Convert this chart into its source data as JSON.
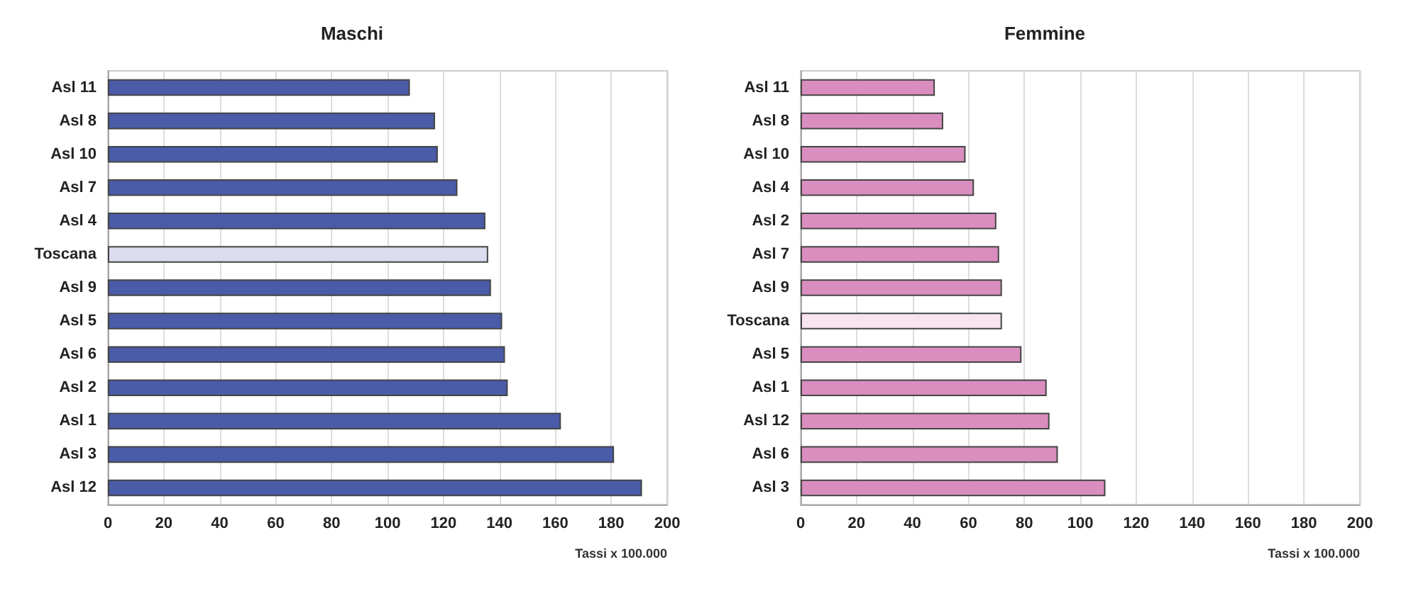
{
  "chart_data": [
    {
      "type": "bar",
      "orientation": "horizontal",
      "title": "Maschi",
      "xlabel": "Tassi x 100.000",
      "categories": [
        "Asl 11",
        "Asl 8",
        "Asl 10",
        "Asl 7",
        "Asl 4",
        "Toscana",
        "Asl 9",
        "Asl 5",
        "Asl 6",
        "Asl 2",
        "Asl 1",
        "Asl 3",
        "Asl 12"
      ],
      "values": [
        108,
        117,
        118,
        125,
        135,
        136,
        137,
        141,
        142,
        143,
        162,
        181,
        191
      ],
      "colors": [
        "#4a5ba8",
        "#4a5ba8",
        "#4a5ba8",
        "#4a5ba8",
        "#4a5ba8",
        "#dcdcf0",
        "#4a5ba8",
        "#4a5ba8",
        "#4a5ba8",
        "#4a5ba8",
        "#4a5ba8",
        "#4a5ba8",
        "#4a5ba8"
      ],
      "xlim": [
        0,
        200
      ],
      "xticks": [
        0,
        20,
        40,
        60,
        80,
        100,
        120,
        140,
        160,
        180,
        200
      ],
      "grid": "x"
    },
    {
      "type": "bar",
      "orientation": "horizontal",
      "title": "Femmine",
      "xlabel": "Tassi x 100.000",
      "categories": [
        "Asl 11",
        "Asl 8",
        "Asl 10",
        "Asl 4",
        "Asl 2",
        "Asl 7",
        "Asl 9",
        "Toscana",
        "Asl 5",
        "Asl 1",
        "Asl 12",
        "Asl 6",
        "Asl 3"
      ],
      "values": [
        48,
        51,
        59,
        62,
        70,
        71,
        72,
        72,
        79,
        88,
        89,
        92,
        109
      ],
      "colors": [
        "#d98ebf",
        "#d98ebf",
        "#d98ebf",
        "#d98ebf",
        "#d98ebf",
        "#d98ebf",
        "#d98ebf",
        "#f7e4ef",
        "#d98ebf",
        "#d98ebf",
        "#d98ebf",
        "#d98ebf",
        "#d98ebf"
      ],
      "xlim": [
        0,
        200
      ],
      "xticks": [
        0,
        20,
        40,
        60,
        80,
        100,
        120,
        140,
        160,
        180,
        200
      ],
      "grid": "x"
    }
  ]
}
